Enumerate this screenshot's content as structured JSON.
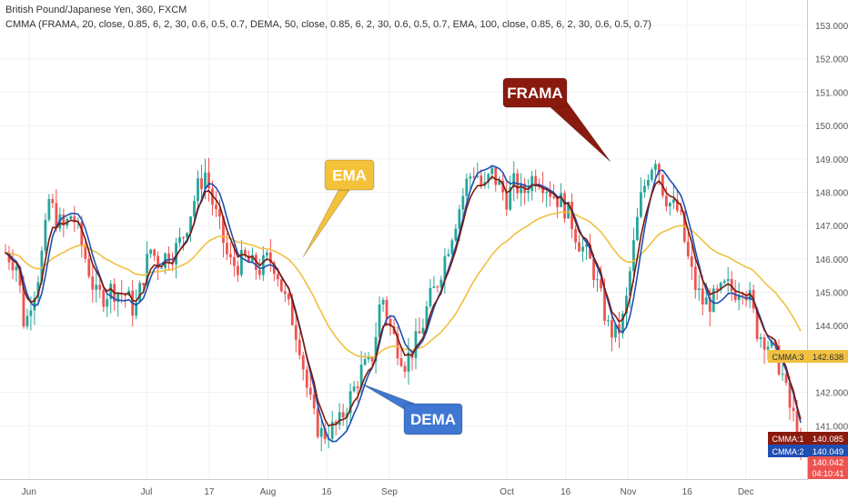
{
  "header": {
    "symbol": "British Pound/Japanese Yen, 360, FXCM",
    "indicator": "CMMA (FRAMA, 20, close, 0.85, 6, 2, 30, 0.6, 0.5, 0.7, DEMA, 50, close, 0.85, 6, 2, 30, 0.6, 0.5, 0.7, EMA, 100, close, 0.85, 6, 2, 30, 0.6, 0.5, 0.7)"
  },
  "colors": {
    "up": "#26a69a",
    "down": "#ef5350",
    "frama": "#7b1a0e",
    "dema": "#1f4fb4",
    "ema": "#f0c040",
    "grid": "#eef0f3",
    "axis": "#555555"
  },
  "chart_data": {
    "type": "candlestick",
    "ylim": [
      139.4,
      153.6
    ],
    "y_ticks": [
      141,
      142,
      143,
      144,
      145,
      146,
      147,
      148,
      149,
      150,
      151,
      152,
      153
    ],
    "y_tick_labels": [
      "141.000",
      "142.000",
      "143.000",
      "144.000",
      "145.000",
      "146.000",
      "147.000",
      "148.000",
      "149.000",
      "150.000",
      "151.000",
      "152.000",
      "153.000"
    ],
    "x_ticks": [
      {
        "label": "Jun",
        "day": 0
      },
      {
        "label": "Jul",
        "day": 30
      },
      {
        "label": "17",
        "day": 46
      },
      {
        "label": "Aug",
        "day": 61
      },
      {
        "label": "16",
        "day": 76
      },
      {
        "label": "Sep",
        "day": 92
      },
      {
        "label": "Oct",
        "day": 122
      },
      {
        "label": "16",
        "day": 137
      },
      {
        "label": "Nov",
        "day": 153
      },
      {
        "label": "16",
        "day": 168
      },
      {
        "label": "Dec",
        "day": 183
      }
    ],
    "x_range": [
      -6,
      197
    ],
    "close_path": [
      [
        -6,
        146.2
      ],
      [
        -3,
        145.8
      ],
      [
        -1,
        143.8
      ],
      [
        0,
        144.6
      ],
      [
        2,
        145.3
      ],
      [
        4,
        146.6
      ],
      [
        5,
        147.8
      ],
      [
        7,
        147.2
      ],
      [
        9,
        146.9
      ],
      [
        11,
        147.4
      ],
      [
        13,
        146.6
      ],
      [
        15,
        145.8
      ],
      [
        17,
        144.9
      ],
      [
        19,
        144.9
      ],
      [
        21,
        145.1
      ],
      [
        23,
        145.0
      ],
      [
        25,
        144.9
      ],
      [
        27,
        144.4
      ],
      [
        29,
        145.4
      ],
      [
        31,
        146.3
      ],
      [
        33,
        145.9
      ],
      [
        35,
        146.1
      ],
      [
        37,
        146.2
      ],
      [
        39,
        146.6
      ],
      [
        41,
        147.3
      ],
      [
        43,
        148.1
      ],
      [
        45,
        148.6
      ],
      [
        47,
        147.6
      ],
      [
        49,
        146.8
      ],
      [
        51,
        145.9
      ],
      [
        53,
        145.8
      ],
      [
        55,
        146.0
      ],
      [
        57,
        145.8
      ],
      [
        59,
        145.7
      ],
      [
        61,
        146.0
      ],
      [
        63,
        145.8
      ],
      [
        65,
        144.9
      ],
      [
        67,
        144.3
      ],
      [
        69,
        143.5
      ],
      [
        71,
        142.1
      ],
      [
        73,
        141.1
      ],
      [
        75,
        140.7
      ],
      [
        77,
        140.9
      ],
      [
        79,
        141.0
      ],
      [
        81,
        141.6
      ],
      [
        83,
        142.1
      ],
      [
        85,
        142.7
      ],
      [
        87,
        142.8
      ],
      [
        88,
        143.3
      ],
      [
        90,
        145.0
      ],
      [
        92,
        144.0
      ],
      [
        94,
        143.4
      ],
      [
        96,
        142.9
      ],
      [
        98,
        143.3
      ],
      [
        100,
        143.8
      ],
      [
        102,
        144.7
      ],
      [
        104,
        145.2
      ],
      [
        106,
        146.0
      ],
      [
        108,
        146.8
      ],
      [
        110,
        147.6
      ],
      [
        112,
        148.4
      ],
      [
        114,
        148.7
      ],
      [
        116,
        148.0
      ],
      [
        118,
        148.6
      ],
      [
        120,
        148.2
      ],
      [
        122,
        147.8
      ],
      [
        124,
        148.3
      ],
      [
        126,
        147.9
      ],
      [
        128,
        148.4
      ],
      [
        130,
        148.5
      ],
      [
        132,
        148.2
      ],
      [
        134,
        147.9
      ],
      [
        136,
        147.7
      ],
      [
        138,
        147.3
      ],
      [
        140,
        146.6
      ],
      [
        142,
        146.2
      ],
      [
        144,
        145.7
      ],
      [
        146,
        144.8
      ],
      [
        148,
        143.9
      ],
      [
        150,
        143.7
      ],
      [
        152,
        144.3
      ],
      [
        154,
        146.1
      ],
      [
        156,
        147.7
      ],
      [
        158,
        148.6
      ],
      [
        160,
        149.1
      ],
      [
        162,
        148.0
      ],
      [
        164,
        147.6
      ],
      [
        166,
        147.4
      ],
      [
        168,
        146.1
      ],
      [
        170,
        145.2
      ],
      [
        172,
        144.7
      ],
      [
        174,
        144.7
      ],
      [
        176,
        144.9
      ],
      [
        178,
        145.2
      ],
      [
        180,
        145.0
      ],
      [
        182,
        145.3
      ],
      [
        184,
        144.8
      ],
      [
        186,
        143.8
      ],
      [
        188,
        143.6
      ],
      [
        190,
        143.2
      ],
      [
        192,
        142.7
      ],
      [
        194,
        141.6
      ],
      [
        196,
        141.0
      ],
      [
        197,
        140.1
      ]
    ],
    "series": [
      {
        "label": "CMMA:1",
        "value": 140.085,
        "value_label": "140.085"
      },
      {
        "label": "CMMA:2",
        "value": 140.049,
        "value_label": "140.049"
      },
      {
        "label": "CMMA:3",
        "value": 142.638,
        "value_label": "142.638"
      }
    ],
    "last_price": {
      "value": 140.042,
      "value_label": "140.042",
      "countdown": "04:10:41"
    },
    "annotations": [
      {
        "text": "EMA",
        "target": [
          63,
          146.0
        ]
      },
      {
        "text": "FRAMA",
        "target": [
          155,
          148.8
        ]
      },
      {
        "text": "DEMA",
        "target": [
          83,
          141.8
        ]
      }
    ]
  }
}
